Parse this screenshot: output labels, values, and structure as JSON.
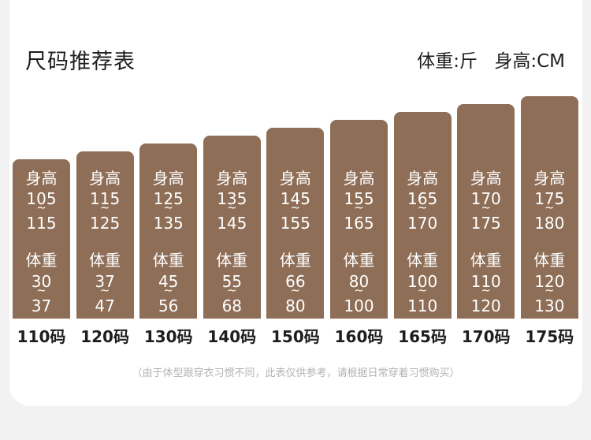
{
  "header": {
    "title": "尺码推荐表",
    "weight_unit": "体重:斤",
    "height_unit": "身高:CM"
  },
  "labels": {
    "height": "身高",
    "weight": "体重",
    "tilde": "~"
  },
  "sizes": [
    {
      "size": "110码",
      "height_min": "105",
      "height_max": "115",
      "weight_min": "30",
      "weight_max": "37"
    },
    {
      "size": "120码",
      "height_min": "115",
      "height_max": "125",
      "weight_min": "37",
      "weight_max": "47"
    },
    {
      "size": "130码",
      "height_min": "125",
      "height_max": "135",
      "weight_min": "45",
      "weight_max": "56"
    },
    {
      "size": "140码",
      "height_min": "135",
      "height_max": "145",
      "weight_min": "55",
      "weight_max": "68"
    },
    {
      "size": "150码",
      "height_min": "145",
      "height_max": "155",
      "weight_min": "66",
      "weight_max": "80"
    },
    {
      "size": "160码",
      "height_min": "155",
      "height_max": "165",
      "weight_min": "80",
      "weight_max": "100"
    },
    {
      "size": "165码",
      "height_min": "165",
      "height_max": "170",
      "weight_min": "100",
      "weight_max": "110"
    },
    {
      "size": "170码",
      "height_min": "170",
      "height_max": "175",
      "weight_min": "110",
      "weight_max": "120"
    },
    {
      "size": "175码",
      "height_min": "175",
      "height_max": "180",
      "weight_min": "120",
      "weight_max": "130"
    }
  ],
  "footer": {
    "note": "（由于体型跟穿衣习惯不同，此表仅供参考，请根据日常穿着习惯购买）"
  },
  "colors": {
    "bar": "#8e6e57",
    "background": "#f2f2f2",
    "card": "#ffffff"
  }
}
